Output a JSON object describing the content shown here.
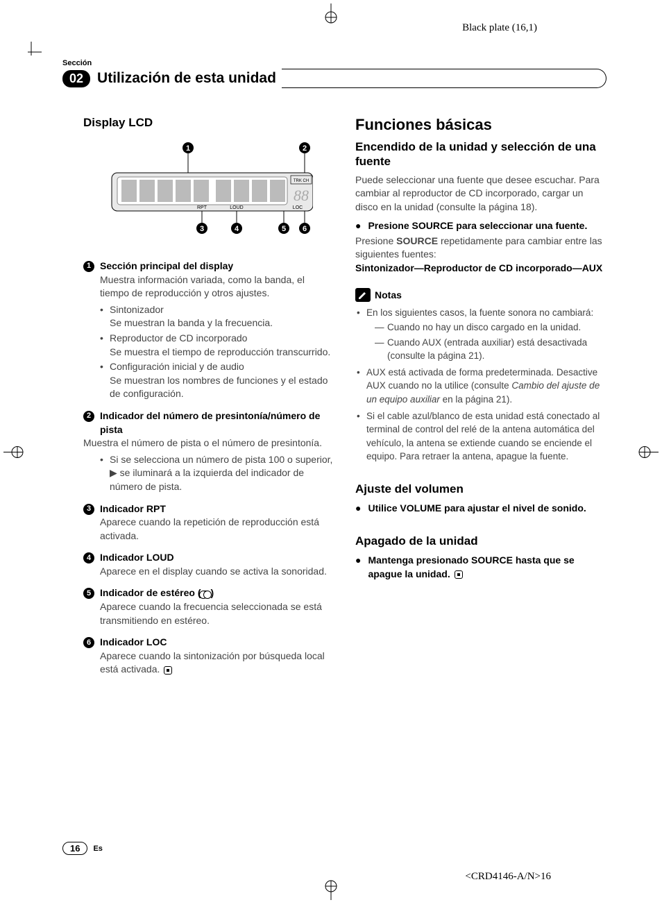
{
  "plate_label": "Black plate (16,1)",
  "section_label": "Sección",
  "section_number": "02",
  "header_title": "Utilización de esta unidad",
  "left": {
    "heading": "Display LCD",
    "callouts": [
      {
        "num": "1",
        "title": "Sección principal del display",
        "body": "Muestra información variada, como la banda, el tiempo de reproducción y otros ajustes.",
        "sub": [
          {
            "label": "Sintonizador",
            "desc": "Se muestran la banda y la frecuencia."
          },
          {
            "label": "Reproductor de CD incorporado",
            "desc": "Se muestra el tiempo de reproducción transcurrido."
          },
          {
            "label": "Configuración inicial y de audio",
            "desc": "Se muestran los nombres de funciones y el estado de configuración."
          }
        ]
      },
      {
        "num": "2",
        "title": "Indicador del número de presintonía/número de pista",
        "body": "Muestra el número de pista o el número de presintonía.",
        "sub": [
          {
            "label": "",
            "desc": "Si se selecciona un número de pista 100 o superior, ▶ se iluminará a la izquierda del indicador de número de pista."
          }
        ]
      },
      {
        "num": "3",
        "title": "Indicador RPT",
        "body": "Aparece cuando la repetición de reproducción está activada."
      },
      {
        "num": "4",
        "title": "Indicador LOUD",
        "body": "Aparece en el display cuando se activa la sonoridad."
      },
      {
        "num": "5",
        "title": "Indicador de estéreo (",
        "title_after": ")",
        "stereo": true,
        "body": "Aparece cuando la frecuencia seleccionada se está transmitiendo en estéreo."
      },
      {
        "num": "6",
        "title": "Indicador LOC",
        "body": "Aparece cuando la sintonización por búsqueda local está activada.",
        "end": true
      }
    ]
  },
  "right": {
    "main_heading": "Funciones básicas",
    "sub1": {
      "heading": "Encendido de la unidad y selección de una fuente",
      "para1": "Puede seleccionar una fuente que desee escuchar. Para cambiar al reproductor de CD incorporado, cargar un disco en la unidad (consulte la página 18).",
      "step": "Presione SOURCE para seleccionar una fuente.",
      "para2_a": "Presione ",
      "para2_bold": "SOURCE",
      "para2_b": " repetidamente para cambiar entre las siguientes fuentes:",
      "seq_a": "Sintonizador",
      "seq_b": "Reproductor de CD incorporado",
      "seq_c": "AUX",
      "notes_label": "Notas",
      "notes": [
        {
          "text": "En los siguientes casos, la fuente sonora no cambiará:",
          "dashes": [
            "Cuando no hay un disco cargado en la unidad.",
            "Cuando AUX (entrada auxiliar) está desactivada (consulte la página 21)."
          ]
        },
        {
          "text_a": "AUX está activada de forma predeterminada. Desactive AUX cuando no la utilice (consulte ",
          "text_i": "Cambio del ajuste de un equipo auxiliar",
          "text_b": " en la página 21)."
        },
        {
          "text": "Si el cable azul/blanco de esta unidad está conectado al terminal de control del relé de la antena automática del vehículo, la antena se extiende cuando se enciende el equipo. Para retraer la antena, apague la fuente."
        }
      ]
    },
    "sub2": {
      "heading": "Ajuste del volumen",
      "step": "Utilice VOLUME para ajustar el nivel de sonido."
    },
    "sub3": {
      "heading": "Apagado de la unidad",
      "step": "Mantenga presionado SOURCE hasta que se apague la unidad.",
      "end": true
    }
  },
  "footer": {
    "page_num": "16",
    "lang": "Es",
    "doc_code": "<CRD4146-A/N>16"
  },
  "lcd": {
    "labels": {
      "trkch": "TRK CH",
      "rpt": "RPT",
      "loud": "LOUD",
      "loc": "LOC"
    },
    "callout_nums": [
      "1",
      "2",
      "3",
      "4",
      "5",
      "6"
    ]
  }
}
